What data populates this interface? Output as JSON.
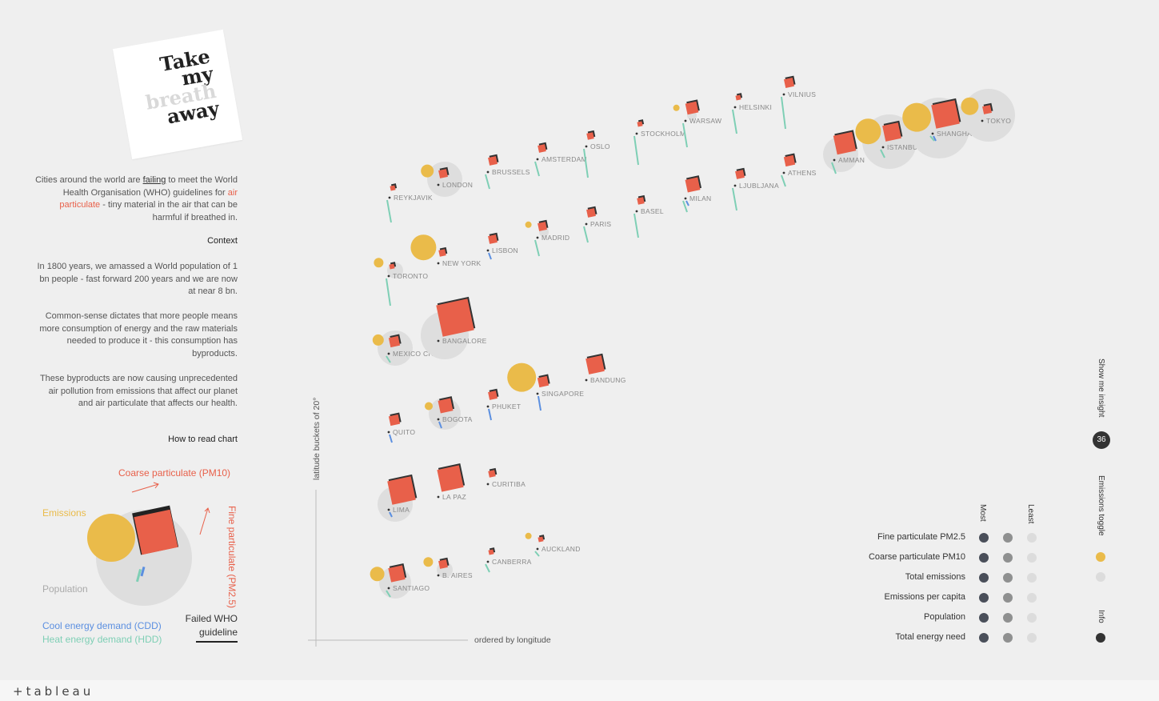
{
  "title": {
    "lines": [
      "Take",
      "my",
      "breath",
      "away"
    ]
  },
  "intro": {
    "p1a": "Cities around the world are ",
    "p1_link": "failing",
    "p1b": " to meet the World Health Organisation (WHO) guidelines for ",
    "p1_red": "air particulate",
    "p1c": " - tiny material in the air that can be harmful if breathed in.",
    "context_heading": "Context",
    "p2": "In 1800 years, we amassed a World population of 1 bn people - fast forward 200 years and we are now at near 8 bn.",
    "p3": "Common-sense dictates that more people means more consumption of energy and the raw materials needed to produce it - this consumption has byproducts.",
    "p4": "These byproducts are now causing unprecedented air pollution from emissions that affect our planet and air particulate that affects our health.",
    "how_heading": "How to read chart"
  },
  "legend": {
    "coarse": "Coarse particulate (PM10)",
    "emissions": "Emissions",
    "fine": "Fine particulate (PM2.5)",
    "population": "Population",
    "cdd": "Cool energy demand (CDD)",
    "hdd": "Heat energy demand (HDD)",
    "failed_who": "Failed WHO guideline",
    "colors": {
      "emissions": "#eabb4a",
      "particulate": "#e8604a",
      "population": "#dedede",
      "cdd": "#5b8fe0",
      "hdd": "#7ecfb5",
      "dark": "#333333"
    }
  },
  "axes": {
    "y_label": "latitude buckets of 20°",
    "x_label": "ordered by longitude"
  },
  "chart_data": {
    "type": "scatter",
    "x_label": "ordered by longitude",
    "y_label": "latitude buckets of 20°",
    "rows": [
      {
        "cities": [
          "REYKJAVIK",
          "LONDON",
          "BRUSSELS",
          "AMSTERDAM",
          "OSLO",
          "STOCKHOLM",
          "WARSAW",
          "HELSINKI",
          "VILNIUS"
        ]
      },
      {
        "cities": [
          "TORONTO",
          "NEW YORK",
          "LISBON",
          "MADRID",
          "PARIS",
          "BASEL",
          "MILAN",
          "LJUBLJANA",
          "ATHENS",
          "AMMAN",
          "ISTANBUL",
          "SHANGHAI",
          "TOKYO"
        ]
      },
      {
        "cities": [
          "MEXICO CITY",
          "BANGALORE"
        ]
      },
      {
        "cities": [
          "QUITO",
          "BOGOTA",
          "PHUKET",
          "SINGAPORE",
          "BANDUNG"
        ]
      },
      {
        "cities": [
          "LIMA",
          "LA PAZ",
          "CURITIBA"
        ]
      },
      {
        "cities": [
          "SANTIAGO",
          "B. AIRES",
          "CANBERRA",
          "AUCKLAND"
        ]
      }
    ]
  },
  "controls": {
    "most": "Most",
    "least": "Least",
    "rows": [
      "Fine particulate PM2.5",
      "Coarse particulate PM10",
      "Total emissions",
      "Emissions per capita",
      "Population",
      "Total energy need"
    ],
    "show_insight": "Show me insight",
    "insight_count": "36",
    "emissions_toggle": "Emissions toggle",
    "info": "Info"
  },
  "footer": {
    "logo": "+tableau"
  }
}
